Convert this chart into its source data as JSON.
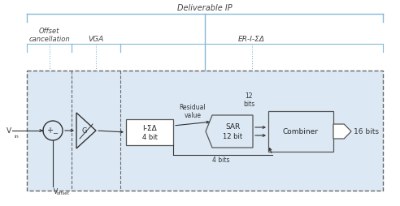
{
  "bg_color": "#ffffff",
  "box_fill": "#dce9f5",
  "box_border": "#88b8d8",
  "dashed_border": "#666666",
  "arrow_color": "#333333",
  "deliverable_label": "Deliverable IP",
  "section_labels": [
    "Offset\ncancellation",
    "VGA",
    "ER-I-ΣΔ"
  ],
  "block_isdelta": "I-ΣΔ\n4 bit",
  "block_sar": "SAR\n12 bit",
  "block_combiner": "Combiner",
  "label_residual": "Residual\nvalue",
  "label_12bits": "12\nbits",
  "label_4bits": "4 bits",
  "label_16bits": "16 bits",
  "label_vin": "V",
  "label_voffset": "V",
  "fig_w": 4.92,
  "fig_h": 2.55,
  "dpi": 100
}
